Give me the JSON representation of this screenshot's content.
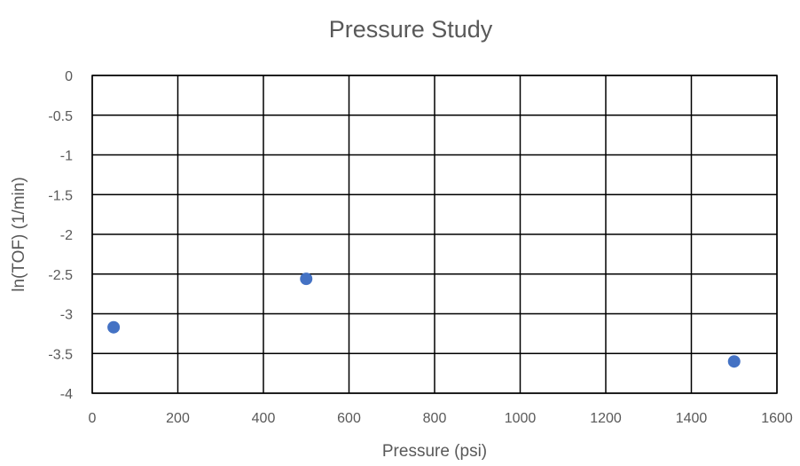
{
  "chart_data": {
    "type": "scatter",
    "title": "Pressure Study",
    "xlabel": "Pressure (psi)",
    "ylabel": "ln(TOF) (1/min)",
    "xlim": [
      0,
      1600
    ],
    "ylim": [
      -4,
      0
    ],
    "x_ticks": [
      0,
      200,
      400,
      600,
      800,
      1000,
      1200,
      1400,
      1600
    ],
    "y_ticks": [
      0,
      -0.5,
      -1,
      -1.5,
      -2,
      -2.5,
      -3,
      -3.5,
      -4
    ],
    "x_tick_labels": [
      "0",
      "200",
      "400",
      "600",
      "800",
      "1000",
      "1200",
      "1400",
      "1600"
    ],
    "y_tick_labels": [
      "0",
      "-0.5",
      "-1",
      "-1.5",
      "-2",
      "-2.5",
      "-3",
      "-3.5",
      "-4"
    ],
    "grid": true,
    "legend": "none",
    "series": [
      {
        "x": [
          50,
          500,
          1500
        ],
        "y": [
          -3.17,
          -2.56,
          -3.6
        ],
        "color": "#4472C4"
      }
    ]
  }
}
